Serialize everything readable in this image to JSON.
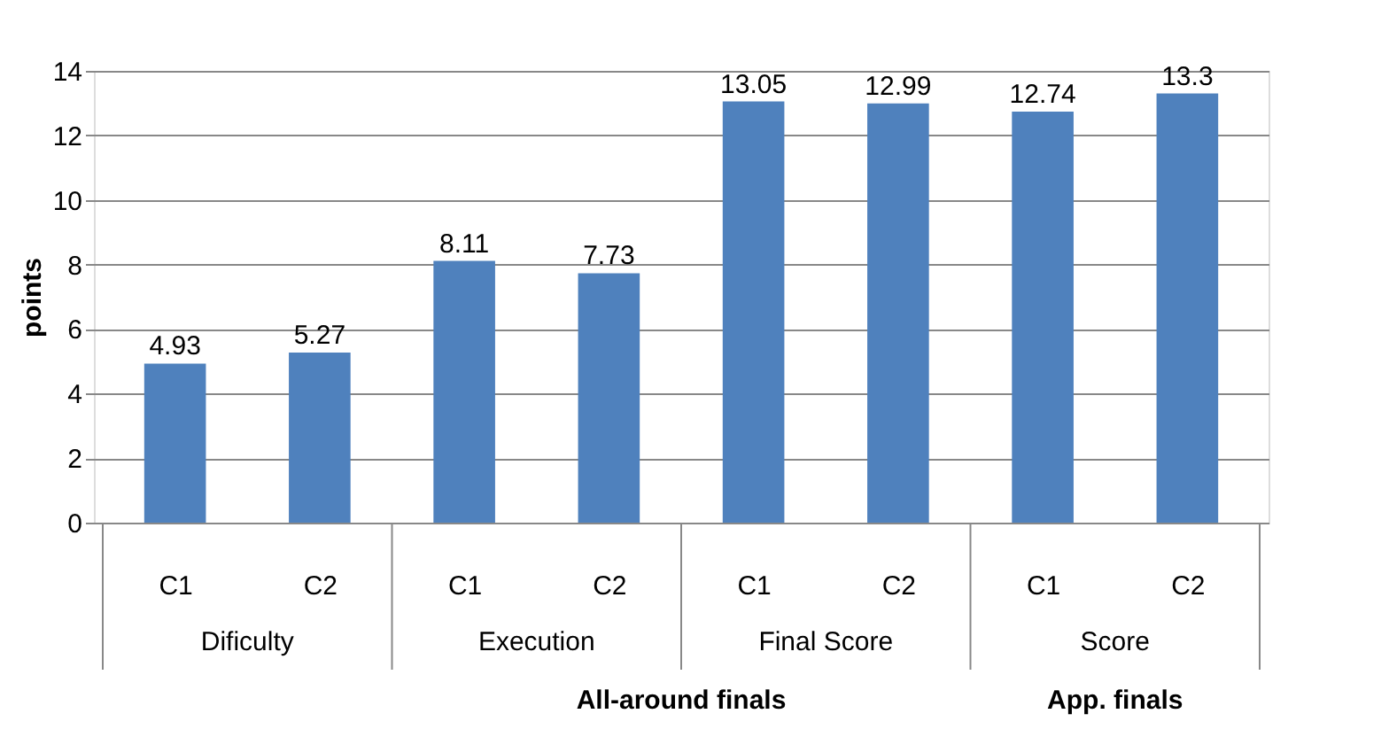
{
  "chart_data": {
    "type": "bar",
    "ylabel": "points",
    "categories": [
      "C1",
      "C2",
      "C1",
      "C2",
      "C1",
      "C2",
      "C1",
      "C2"
    ],
    "values": [
      4.93,
      5.27,
      8.11,
      7.73,
      13.05,
      12.99,
      12.74,
      13.3
    ],
    "color": "#4f81bd",
    "ylim": [
      0,
      14
    ],
    "yticks": [
      0,
      2,
      4,
      6,
      8,
      10,
      12,
      14
    ],
    "grid": "y",
    "data_labels": true,
    "annotations": [
      "Dificulty",
      "Execution",
      "Final Score",
      "Score",
      "All-around finals",
      "App. finals"
    ]
  }
}
